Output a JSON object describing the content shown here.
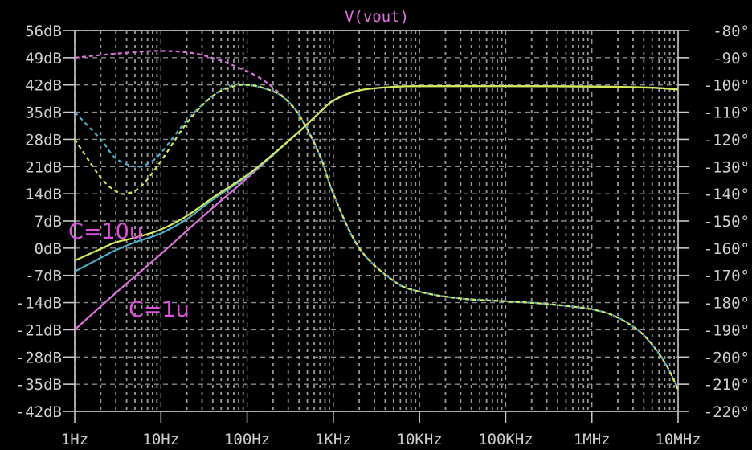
{
  "chart_data": {
    "type": "line",
    "title": "V(vout)",
    "x_scale": "log",
    "xlim": [
      1,
      10000000
    ],
    "ylim_left": [
      -42,
      56
    ],
    "ylim_right": [
      -220,
      -80
    ],
    "grid": true,
    "x_ticks": [
      {
        "value": 1,
        "label": "1Hz"
      },
      {
        "value": 10,
        "label": "10Hz"
      },
      {
        "value": 100,
        "label": "100Hz"
      },
      {
        "value": 1000,
        "label": "1KHz"
      },
      {
        "value": 10000,
        "label": "10KHz"
      },
      {
        "value": 100000,
        "label": "100KHz"
      },
      {
        "value": 1000000,
        "label": "1MHz"
      },
      {
        "value": 10000000,
        "label": "10MHz"
      }
    ],
    "y_ticks_left": [
      {
        "value": 56,
        "label": "56dB"
      },
      {
        "value": 49,
        "label": "49dB"
      },
      {
        "value": 42,
        "label": "42dB"
      },
      {
        "value": 35,
        "label": "35dB"
      },
      {
        "value": 28,
        "label": "28dB"
      },
      {
        "value": 21,
        "label": "21dB"
      },
      {
        "value": 14,
        "label": "14dB"
      },
      {
        "value": 7,
        "label": "7dB"
      },
      {
        "value": 0,
        "label": "0dB"
      },
      {
        "value": -7,
        "label": "-7dB"
      },
      {
        "value": -14,
        "label": "-14dB"
      },
      {
        "value": -21,
        "label": "-21dB"
      },
      {
        "value": -28,
        "label": "-28dB"
      },
      {
        "value": -35,
        "label": "-35dB"
      },
      {
        "value": -42,
        "label": "-42dB"
      }
    ],
    "y_ticks_right": [
      {
        "value": -80,
        "label": "-80°"
      },
      {
        "value": -90,
        "label": "-90°"
      },
      {
        "value": -100,
        "label": "-100°"
      },
      {
        "value": -110,
        "label": "-110°"
      },
      {
        "value": -120,
        "label": "-120°"
      },
      {
        "value": -130,
        "label": "-130°"
      },
      {
        "value": -140,
        "label": "-140°"
      },
      {
        "value": -150,
        "label": "-150°"
      },
      {
        "value": -160,
        "label": "-160°"
      },
      {
        "value": -170,
        "label": "-170°"
      },
      {
        "value": -180,
        "label": "-180°"
      },
      {
        "value": -190,
        "label": "-190°"
      },
      {
        "value": -200,
        "label": "-200°"
      },
      {
        "value": -210,
        "label": "-210°"
      },
      {
        "value": -220,
        "label": "-220°"
      }
    ],
    "series": [
      {
        "kind": "magnitude",
        "axis": "left",
        "color": "#e070e0",
        "dashed": false,
        "x": [
          1,
          3,
          10,
          30,
          100,
          200,
          400,
          700,
          1000,
          2000,
          5000,
          10000,
          100000,
          1000000,
          5000000,
          10000000
        ],
        "y": [
          -21,
          -11.5,
          -1.5,
          8,
          18,
          24,
          30,
          35,
          38,
          40.6,
          41.5,
          41.7,
          41.7,
          41.6,
          41.3,
          40.8
        ]
      },
      {
        "kind": "magnitude",
        "axis": "left",
        "color": "#4ab0c8",
        "dashed": false,
        "x": [
          1,
          2,
          3,
          5,
          10,
          20,
          40,
          100,
          200,
          400,
          700,
          1000,
          2000,
          5000,
          10000,
          100000,
          1000000,
          5000000,
          10000000
        ],
        "y": [
          -6,
          -2.5,
          -0.5,
          1.5,
          3.8,
          7.5,
          12.5,
          18.5,
          24,
          30,
          35,
          38,
          40.6,
          41.5,
          41.7,
          41.7,
          41.6,
          41.3,
          40.8
        ]
      },
      {
        "kind": "magnitude",
        "axis": "left",
        "color": "#d8e850",
        "dashed": false,
        "x": [
          1,
          2,
          3,
          5,
          10,
          20,
          40,
          100,
          200,
          400,
          700,
          1000,
          2000,
          5000,
          10000,
          100000,
          1000000,
          5000000,
          10000000
        ],
        "y": [
          -3.2,
          -0.2,
          1.5,
          2.7,
          4.8,
          8.3,
          13,
          18.8,
          24.2,
          30,
          35,
          38,
          40.6,
          41.5,
          41.7,
          41.7,
          41.6,
          41.3,
          40.8
        ]
      },
      {
        "kind": "phase",
        "axis": "right",
        "color": "#e070e0",
        "dashed": true,
        "x": [
          1,
          3,
          10,
          30,
          100,
          200,
          400,
          700,
          1000,
          2000,
          5000,
          10000,
          30000,
          100000,
          300000,
          1000000,
          2000000,
          4000000,
          7000000,
          10000000
        ],
        "y": [
          -90,
          -88.5,
          -87.5,
          -89,
          -95,
          -101,
          -111,
          -126,
          -140,
          -160,
          -172,
          -176,
          -178.5,
          -179.5,
          -180.5,
          -182.5,
          -185.5,
          -192,
          -202,
          -212
        ]
      },
      {
        "kind": "phase",
        "axis": "right",
        "color": "#4ab0c8",
        "dashed": true,
        "x": [
          1,
          2,
          3,
          5,
          7,
          10,
          20,
          40,
          70,
          100,
          150,
          250,
          400,
          700,
          1000,
          2000,
          5000,
          10000,
          30000,
          100000,
          300000,
          1000000,
          2000000,
          4000000,
          7000000,
          10000000
        ],
        "y": [
          -110,
          -120,
          -127,
          -130,
          -129,
          -125,
          -113,
          -104,
          -100,
          -100,
          -101,
          -104,
          -111,
          -126,
          -140,
          -160,
          -172,
          -176,
          -178.5,
          -179.5,
          -180.5,
          -182.5,
          -185.5,
          -192,
          -202,
          -212
        ]
      },
      {
        "kind": "phase",
        "axis": "right",
        "color": "#d8e850",
        "dashed": true,
        "x": [
          1,
          2,
          3,
          4,
          6,
          10,
          20,
          40,
          70,
          100,
          150,
          250,
          400,
          700,
          1000,
          2000,
          5000,
          10000,
          30000,
          100000,
          300000,
          1000000,
          2000000,
          4000000,
          7000000,
          10000000
        ],
        "y": [
          -120,
          -134,
          -139,
          -140,
          -137,
          -128,
          -114,
          -104,
          -100.5,
          -100,
          -101,
          -104,
          -111,
          -126,
          -140,
          -160,
          -172,
          -176,
          -178.5,
          -179.5,
          -180.5,
          -182.5,
          -185.5,
          -192,
          -202,
          -212
        ]
      }
    ],
    "annotations": [
      {
        "text": "C=10u",
        "x": 1,
        "y": 4.5,
        "color": "#e050e0"
      },
      {
        "text": "C=1u",
        "x": 5,
        "y": -15.5,
        "color": "#e050e0"
      }
    ]
  }
}
